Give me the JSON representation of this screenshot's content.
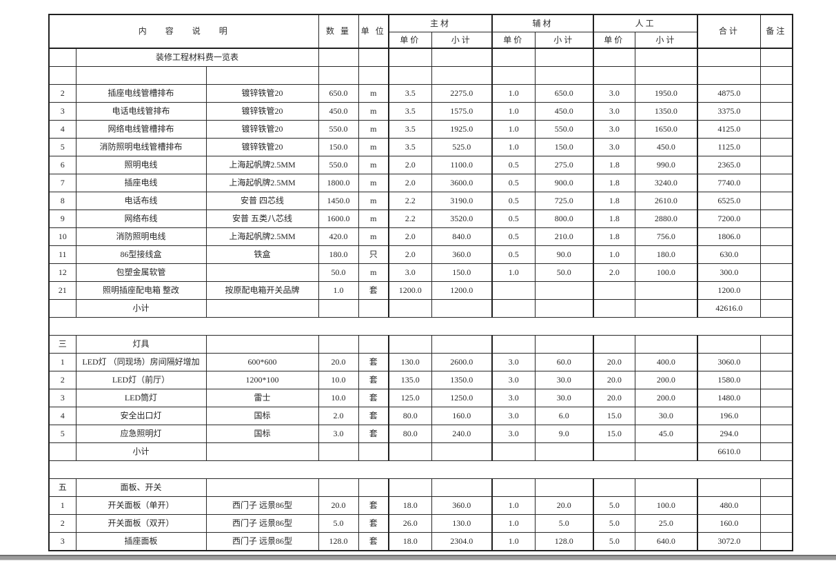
{
  "header": {
    "content": "内    容    说    明",
    "qty": "数 量",
    "unit": "单 位",
    "main": "主材",
    "aux": "辅材",
    "labor": "人工",
    "price": "单价",
    "subtotal": "小计",
    "total": "合计",
    "remark": "备注"
  },
  "colors": {
    "grid_line": "#262626",
    "thick_line": "#1f1f1f",
    "bottom_bar": "#9b9b9b",
    "background": "#ffffff"
  },
  "rows": [
    {
      "t": "title",
      "name": "装修工程材料费一览表"
    },
    {
      "t": "blank"
    },
    {
      "t": "item",
      "num": "2",
      "name": "插座电线管槽排布",
      "spec": "镀锌铁管20",
      "qty": "650.0",
      "unit": "m",
      "mp": "3.5",
      "ms": "2275.0",
      "ap": "1.0",
      "as": "650.0",
      "lp": "3.0",
      "ls": "1950.0",
      "total": "4875.0",
      "rem": ""
    },
    {
      "t": "item",
      "num": "3",
      "name": "电话电线管排布",
      "spec": "镀锌铁管20",
      "qty": "450.0",
      "unit": "m",
      "mp": "3.5",
      "ms": "1575.0",
      "ap": "1.0",
      "as": "450.0",
      "lp": "3.0",
      "ls": "1350.0",
      "total": "3375.0",
      "rem": ""
    },
    {
      "t": "item",
      "num": "4",
      "name": "网络电线管槽排布",
      "spec": "镀锌铁管20",
      "qty": "550.0",
      "unit": "m",
      "mp": "3.5",
      "ms": "1925.0",
      "ap": "1.0",
      "as": "550.0",
      "lp": "3.0",
      "ls": "1650.0",
      "total": "4125.0",
      "rem": ""
    },
    {
      "t": "item",
      "num": "5",
      "name": "消防照明电线管槽排布",
      "spec": "镀锌铁管20",
      "qty": "150.0",
      "unit": "m",
      "mp": "3.5",
      "ms": "525.0",
      "ap": "1.0",
      "as": "150.0",
      "lp": "3.0",
      "ls": "450.0",
      "total": "1125.0",
      "rem": ""
    },
    {
      "t": "item",
      "num": "6",
      "name": "照明电线",
      "spec": "上海起帆牌2.5MM",
      "qty": "550.0",
      "unit": "m",
      "mp": "2.0",
      "ms": "1100.0",
      "ap": "0.5",
      "as": "275.0",
      "lp": "1.8",
      "ls": "990.0",
      "total": "2365.0",
      "rem": ""
    },
    {
      "t": "item",
      "num": "7",
      "name": "插座电线",
      "spec": "上海起帆牌2.5MM",
      "qty": "1800.0",
      "unit": "m",
      "mp": "2.0",
      "ms": "3600.0",
      "ap": "0.5",
      "as": "900.0",
      "lp": "1.8",
      "ls": "3240.0",
      "total": "7740.0",
      "rem": ""
    },
    {
      "t": "item",
      "num": "8",
      "name": "电话布线",
      "spec": "安普 四芯线",
      "qty": "1450.0",
      "unit": "m",
      "mp": "2.2",
      "ms": "3190.0",
      "ap": "0.5",
      "as": "725.0",
      "lp": "1.8",
      "ls": "2610.0",
      "total": "6525.0",
      "rem": ""
    },
    {
      "t": "item",
      "num": "9",
      "name": "网络布线",
      "spec": "安普 五类八芯线",
      "qty": "1600.0",
      "unit": "m",
      "mp": "2.2",
      "ms": "3520.0",
      "ap": "0.5",
      "as": "800.0",
      "lp": "1.8",
      "ls": "2880.0",
      "total": "7200.0",
      "rem": ""
    },
    {
      "t": "item",
      "num": "10",
      "name": "消防照明电线",
      "spec": "上海起帆牌2.5MM",
      "qty": "420.0",
      "unit": "m",
      "mp": "2.0",
      "ms": "840.0",
      "ap": "0.5",
      "as": "210.0",
      "lp": "1.8",
      "ls": "756.0",
      "total": "1806.0",
      "rem": ""
    },
    {
      "t": "item",
      "num": "11",
      "name": "86型接线盒",
      "spec": "铁盒",
      "qty": "180.0",
      "unit": "只",
      "mp": "2.0",
      "ms": "360.0",
      "ap": "0.5",
      "as": "90.0",
      "lp": "1.0",
      "ls": "180.0",
      "total": "630.0",
      "rem": ""
    },
    {
      "t": "item",
      "num": "12",
      "name": "包塑金属软管",
      "spec": "",
      "qty": "50.0",
      "unit": "m",
      "mp": "3.0",
      "ms": "150.0",
      "ap": "1.0",
      "as": "50.0",
      "lp": "2.0",
      "ls": "100.0",
      "total": "300.0",
      "rem": ""
    },
    {
      "t": "item",
      "num": "21",
      "name": "照明插座配电箱  整改",
      "spec": "按原配电箱开关品牌",
      "qty": "1.0",
      "unit": "套",
      "mp": "1200.0",
      "ms": "1200.0",
      "ap": "",
      "as": "",
      "lp": "",
      "ls": "",
      "total": "1200.0",
      "rem": ""
    },
    {
      "t": "subtotal",
      "num": "",
      "name": "小计",
      "spec": "",
      "qty": "",
      "unit": "",
      "mp": "",
      "ms": "",
      "ap": "",
      "as": "",
      "lp": "",
      "ls": "",
      "total": "42616.0",
      "rem": ""
    },
    {
      "t": "sep"
    },
    {
      "t": "section",
      "num": "三",
      "name": "灯具",
      "spec": "",
      "qty": "",
      "unit": "",
      "mp": "",
      "ms": "",
      "ap": "",
      "as": "",
      "lp": "",
      "ls": "",
      "total": "",
      "rem": ""
    },
    {
      "t": "item",
      "num": "1",
      "name": "LED灯 （同现场）房间隔好增加",
      "spec": "600*600",
      "qty": "20.0",
      "unit": "套",
      "mp": "130.0",
      "ms": "2600.0",
      "ap": "3.0",
      "as": "60.0",
      "lp": "20.0",
      "ls": "400.0",
      "total": "3060.0",
      "rem": ""
    },
    {
      "t": "item",
      "num": "2",
      "name": "LED灯（前厅）",
      "spec": "1200*100",
      "qty": "10.0",
      "unit": "套",
      "mp": "135.0",
      "ms": "1350.0",
      "ap": "3.0",
      "as": "30.0",
      "lp": "20.0",
      "ls": "200.0",
      "total": "1580.0",
      "rem": ""
    },
    {
      "t": "item",
      "num": "3",
      "name": "LED筒灯",
      "spec": "雷士",
      "qty": "10.0",
      "unit": "套",
      "mp": "125.0",
      "ms": "1250.0",
      "ap": "3.0",
      "as": "30.0",
      "lp": "20.0",
      "ls": "200.0",
      "total": "1480.0",
      "rem": ""
    },
    {
      "t": "item",
      "num": "4",
      "name": "安全出口灯",
      "spec": "国标",
      "qty": "2.0",
      "unit": "套",
      "mp": "80.0",
      "ms": "160.0",
      "ap": "3.0",
      "as": "6.0",
      "lp": "15.0",
      "ls": "30.0",
      "total": "196.0",
      "rem": ""
    },
    {
      "t": "item",
      "num": "5",
      "name": "应急照明灯",
      "spec": "国标",
      "qty": "3.0",
      "unit": "套",
      "mp": "80.0",
      "ms": "240.0",
      "ap": "3.0",
      "as": "9.0",
      "lp": "15.0",
      "ls": "45.0",
      "total": "294.0",
      "rem": ""
    },
    {
      "t": "subtotal",
      "num": "",
      "name": "小计",
      "spec": "",
      "qty": "",
      "unit": "",
      "mp": "",
      "ms": "",
      "ap": "",
      "as": "",
      "lp": "",
      "ls": "",
      "total": "6610.0",
      "rem": ""
    },
    {
      "t": "sep"
    },
    {
      "t": "section",
      "num": "五",
      "name": "面板、开关",
      "spec": "",
      "qty": "",
      "unit": "",
      "mp": "",
      "ms": "",
      "ap": "",
      "as": "",
      "lp": "",
      "ls": "",
      "total": "",
      "rem": ""
    },
    {
      "t": "item",
      "num": "1",
      "name": "开关面板（单开）",
      "spec": "西门子 远景86型",
      "qty": "20.0",
      "unit": "套",
      "mp": "18.0",
      "ms": "360.0",
      "ap": "1.0",
      "as": "20.0",
      "lp": "5.0",
      "ls": "100.0",
      "total": "480.0",
      "rem": ""
    },
    {
      "t": "item",
      "num": "2",
      "name": "开关面板（双开）",
      "spec": "西门子 远景86型",
      "qty": "5.0",
      "unit": "套",
      "mp": "26.0",
      "ms": "130.0",
      "ap": "1.0",
      "as": "5.0",
      "lp": "5.0",
      "ls": "25.0",
      "total": "160.0",
      "rem": ""
    },
    {
      "t": "item",
      "num": "3",
      "name": "插座面板",
      "spec": "西门子 远景86型",
      "qty": "128.0",
      "unit": "套",
      "mp": "18.0",
      "ms": "2304.0",
      "ap": "1.0",
      "as": "128.0",
      "lp": "5.0",
      "ls": "640.0",
      "total": "3072.0",
      "rem": ""
    }
  ]
}
